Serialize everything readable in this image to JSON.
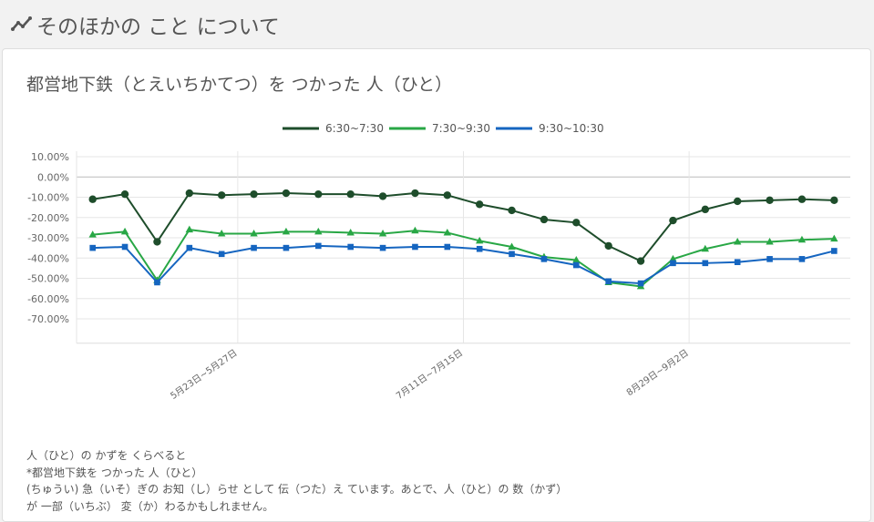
{
  "header": {
    "title": "そのほかの こと について",
    "icon": "line-chart-icon"
  },
  "card": {
    "title": "都営地下鉄（とえいちかてつ）を つかった 人（ひと）"
  },
  "chart_data": {
    "type": "line",
    "title": "",
    "xlabel": "",
    "ylabel": "",
    "ylim": [
      -70,
      10
    ],
    "y_ticks": [
      "10.00%",
      "0.00%",
      "-10.00%",
      "-20.00%",
      "-30.00%",
      "-40.00%",
      "-50.00%",
      "-60.00%",
      "-70.00%"
    ],
    "y_tick_values": [
      10,
      0,
      -10,
      -20,
      -30,
      -40,
      -50,
      -60,
      -70
    ],
    "x_tick_labels": [
      {
        "index": 5,
        "label": "5月23日~5月27日"
      },
      {
        "index": 12,
        "label": "7月11日~7月15日"
      },
      {
        "index": 19,
        "label": "8月29日~9月2日"
      }
    ],
    "grid": true,
    "legend": "top",
    "series": [
      {
        "name": "6:30~7:30",
        "color": "#1e4d2b",
        "marker": "circle",
        "values": [
          -11,
          -8.5,
          -32,
          -8,
          -9,
          -8.5,
          -8,
          -8.5,
          -8.5,
          -9.5,
          -8,
          -9,
          -13.5,
          -16.5,
          -21,
          -22.5,
          -34,
          -41.5,
          -21.5,
          -16,
          -12,
          -11.5,
          -11,
          -11.5
        ]
      },
      {
        "name": "7:30~9:30",
        "color": "#28a745",
        "marker": "triangle",
        "values": [
          -28.5,
          -27,
          -51,
          -26,
          -28,
          -28,
          -27,
          -27,
          -27.5,
          -28,
          -26.5,
          -27.5,
          -31.5,
          -34.5,
          -39.5,
          -41,
          -52,
          -54,
          -40.5,
          -35.5,
          -32,
          -32,
          -31,
          -30.5
        ]
      },
      {
        "name": "9:30~10:30",
        "color": "#1565c0",
        "marker": "square",
        "values": [
          -35,
          -34.5,
          -52,
          -35,
          -38,
          -35,
          -35,
          -34,
          -34.5,
          -35,
          -34.5,
          -34.5,
          -35.5,
          -38,
          -40.5,
          -43.5,
          -51.5,
          -52.5,
          -42.5,
          -42.5,
          -42,
          -40.5,
          -40.5,
          -36.5
        ]
      }
    ]
  },
  "footnote": {
    "line1": "人（ひと）の かずを くらべると",
    "line2": "*都営地下鉄を つかった 人（ひと）",
    "line3": "(ちゅうい) 急（いそ）ぎの お知（し）らせ として 伝（つた）え ています。あとで、人（ひと）の 数（かず）",
    "line4": "が 一部（いちぶ） 変（か）わるかもしれません。"
  }
}
